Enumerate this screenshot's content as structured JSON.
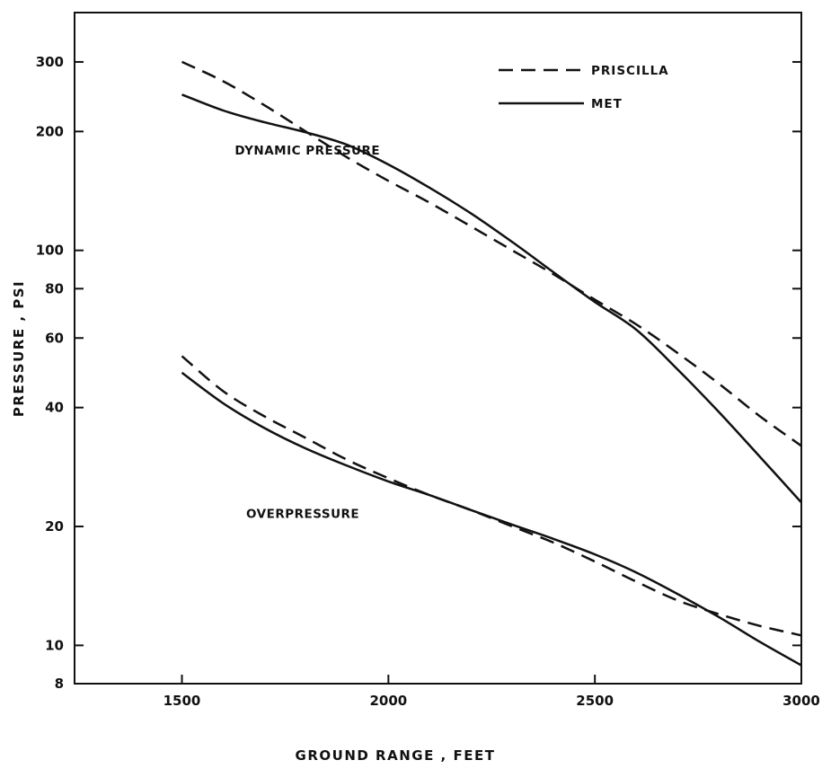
{
  "chart_data": {
    "type": "line",
    "xlabel": "GROUND RANGE , FEET",
    "ylabel": "PRESSURE , PSI",
    "xlim": [
      1240,
      3000
    ],
    "ylim": [
      8,
      400
    ],
    "y_scale": "log",
    "grid": false,
    "legend_position": "top-right",
    "x_ticks": [
      1500,
      2000,
      2500,
      3000
    ],
    "y_ticks": [
      8,
      10,
      20,
      40,
      60,
      80,
      100,
      200,
      300
    ],
    "legend": [
      {
        "label": "PRISCILLA",
        "style": "dashed"
      },
      {
        "label": "MET",
        "style": "solid"
      }
    ],
    "annotations": [
      {
        "text": "DYNAMIC PRESSURE",
        "x": 1980,
        "y": 175
      },
      {
        "text": "OVERPRESSURE",
        "x": 1930,
        "y": 21
      }
    ],
    "series": [
      {
        "name": "PRISCILLA",
        "style": "dashed",
        "x": [
          1500,
          1600,
          1700,
          1800,
          1900,
          2000,
          2100,
          2200,
          2300,
          2400,
          2500,
          2600,
          2700,
          2800,
          2900,
          3000
        ],
        "y": [
          300,
          268,
          233,
          200,
          172,
          150,
          132,
          115,
          100,
          87,
          75,
          65,
          55,
          46,
          38,
          32
        ]
      },
      {
        "name": "MET",
        "style": "solid",
        "x": [
          1500,
          1600,
          1700,
          1800,
          1900,
          2000,
          2100,
          2200,
          2300,
          2400,
          2500,
          2600,
          2700,
          2800,
          2900,
          3000
        ],
        "y": [
          248,
          226,
          211,
          199,
          185,
          165,
          144,
          124,
          105,
          88,
          74,
          63,
          50,
          39,
          30,
          23
        ]
      },
      {
        "name": "PRISCILLA",
        "style": "dashed",
        "x": [
          1500,
          1600,
          1700,
          1800,
          1900,
          2000,
          2100,
          2200,
          2300,
          2400,
          2500,
          2600,
          2700,
          2800,
          2900,
          3000
        ],
        "y": [
          54,
          44,
          38,
          33.5,
          29.5,
          26.5,
          24,
          22,
          20,
          18.2,
          16.3,
          14.5,
          13,
          12,
          11.2,
          10.6
        ]
      },
      {
        "name": "MET",
        "style": "solid",
        "x": [
          1500,
          1600,
          1700,
          1800,
          1900,
          2000,
          2100,
          2200,
          2300,
          2400,
          2500,
          2600,
          2700,
          2800,
          2900,
          3000
        ],
        "y": [
          49,
          41,
          35.5,
          31.5,
          28.5,
          26,
          24,
          22,
          20.2,
          18.6,
          17,
          15.3,
          13.5,
          11.8,
          10.2,
          8.9
        ]
      }
    ]
  }
}
